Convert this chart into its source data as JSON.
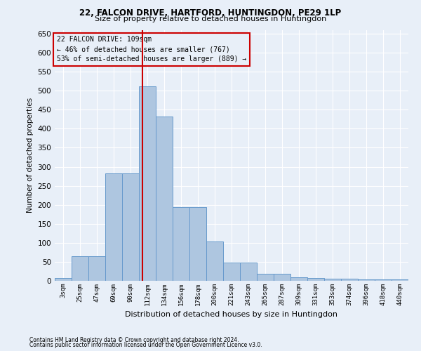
{
  "title1": "22, FALCON DRIVE, HARTFORD, HUNTINGDON, PE29 1LP",
  "title2": "Size of property relative to detached houses in Huntingdon",
  "xlabel": "Distribution of detached houses by size in Huntingdon",
  "ylabel": "Number of detached properties",
  "footnote1": "Contains HM Land Registry data © Crown copyright and database right 2024.",
  "footnote2": "Contains public sector information licensed under the Open Government Licence v3.0.",
  "annotation_line1": "22 FALCON DRIVE: 109sqm",
  "annotation_line2": "← 46% of detached houses are smaller (767)",
  "annotation_line3": "53% of semi-detached houses are larger (889) →",
  "bar_color": "#aec6e0",
  "bar_edge_color": "#6699cc",
  "vline_color": "#cc0000",
  "categories": [
    "3sqm",
    "25sqm",
    "47sqm",
    "69sqm",
    "90sqm",
    "112sqm",
    "134sqm",
    "156sqm",
    "178sqm",
    "200sqm",
    "221sqm",
    "243sqm",
    "265sqm",
    "287sqm",
    "309sqm",
    "331sqm",
    "353sqm",
    "374sqm",
    "396sqm",
    "418sqm",
    "440sqm"
  ],
  "values": [
    8,
    65,
    65,
    283,
    283,
    512,
    432,
    193,
    193,
    103,
    48,
    48,
    18,
    18,
    10,
    8,
    5,
    5,
    3,
    3,
    3
  ],
  "ylim": [
    0,
    660
  ],
  "yticks": [
    0,
    50,
    100,
    150,
    200,
    250,
    300,
    350,
    400,
    450,
    500,
    550,
    600,
    650
  ],
  "background_color": "#e8eff8",
  "grid_color": "#ffffff",
  "vline_x_index": 4.7
}
